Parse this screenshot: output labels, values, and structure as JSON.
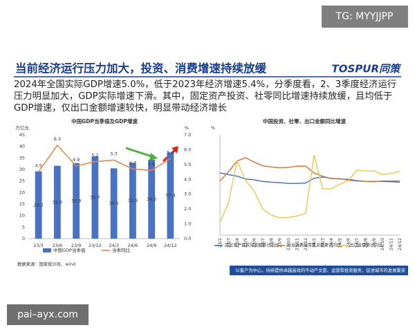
{
  "watermark_top": "TG: MYYJJPP",
  "watermark_bottom": "pai–ayx.com",
  "header": {
    "title": "当前经济运行压力加大，投资、消费增速持续放缓",
    "logo": "TOSPUR同策"
  },
  "body": "2024年全国实际GDP增速5.0%，低于2023年经济增速5.4%，分季度看，2、3季度经济运行压力明显加大，GDP实际增速下滑。其中，固定资产投资、社零同比增速持续放缓，且均低于GDP增速，仅出口金额增速较快，明显带动经济增长",
  "footer": "以客户为中心，持续提供卓越高效的不动产文旅、运营和投资服务，促进城市的发展繁荣",
  "chart_data": [
    {
      "type": "bar",
      "title": "中国GDP当季值及GDP增速",
      "y_label": "万亿元",
      "y2_label": "%",
      "note": "数据来源：国家统计局、wind",
      "categories": [
        "23/3",
        "23/6",
        "23/9",
        "23/12",
        "24/3",
        "24/6",
        "24/9",
        "24/12"
      ],
      "series": [
        {
          "name": "中国GDP当季值",
          "color": "#4a72c2",
          "values": [
            29.2,
            31.6,
            32.8,
            35.7,
            30.5,
            32.9,
            34.2,
            37.4
          ]
        },
        {
          "name": "当季同比",
          "type": "line",
          "axis": "y2",
          "color": "#e0894a",
          "values": [
            4.5,
            6.3,
            4.9,
            5.2,
            5.3,
            4.7,
            4.6,
            5.4
          ]
        }
      ],
      "ylim": [
        0,
        45
      ],
      "yticks": [
        0,
        5,
        10,
        15,
        20,
        25,
        30,
        35,
        40,
        45
      ],
      "y2lim": [
        0,
        7
      ],
      "y2ticks": [
        {
          "value": 0,
          "label": "0.0"
        },
        {
          "value": 1,
          "label": "1.0"
        },
        {
          "value": 2,
          "label": "2.0"
        },
        {
          "value": 3,
          "label": "3.0"
        },
        {
          "value": 4,
          "label": "4.0"
        },
        {
          "value": 5,
          "label": "5.0"
        },
        {
          "value": 6,
          "label": "6.0"
        },
        {
          "value": 7,
          "label": "7.0"
        }
      ]
    },
    {
      "type": "line",
      "title": "中国投资、社零、出口金额同比增速",
      "y_label": "%",
      "categories": [
        "23/2",
        "23/3",
        "23/4",
        "23/5",
        "23/6",
        "23/7",
        "23/8",
        "23/9",
        "23/10",
        "23/11",
        "23/12",
        "24/2",
        "24/3",
        "24/4",
        "24/5",
        "24/6",
        "24/7",
        "24/8",
        "24/9",
        "24/10",
        "24/11",
        "24/12"
      ],
      "series": [
        {
          "name": "固定资产投资完成额累计同比",
          "color": "#3b6db5",
          "values": [
            5.5,
            5.1,
            4.7,
            4.0,
            3.8,
            3.4,
            3.2,
            3.1,
            2.9,
            2.9,
            3.0,
            4.2,
            4.5,
            4.2,
            4.0,
            3.9,
            3.6,
            3.4,
            3.4,
            3.4,
            3.3,
            3.2
          ]
        },
        {
          "name": "社会消费品零售总额累计同比",
          "color": "#c9733c",
          "values": [
            3.5,
            5.8,
            8.5,
            9.3,
            8.2,
            7.3,
            7.0,
            6.8,
            6.9,
            7.2,
            7.2,
            5.5,
            4.7,
            4.1,
            4.1,
            3.7,
            3.5,
            3.4,
            3.3,
            3.5,
            3.5,
            3.5
          ]
        },
        {
          "name": "出口金额累计同比",
          "color": "#e5c84a",
          "values": [
            -6.8,
            -1.9,
            8.5,
            3.6,
            1.0,
            -3.5,
            -5.0,
            -5.7,
            -5.6,
            -5.2,
            -4.6,
            10.0,
            1.5,
            1.6,
            2.7,
            3.6,
            6.2,
            6.0,
            6.0,
            5.1,
            5.4,
            5.9
          ]
        }
      ],
      "ylim": [
        -10,
        15
      ]
    }
  ]
}
